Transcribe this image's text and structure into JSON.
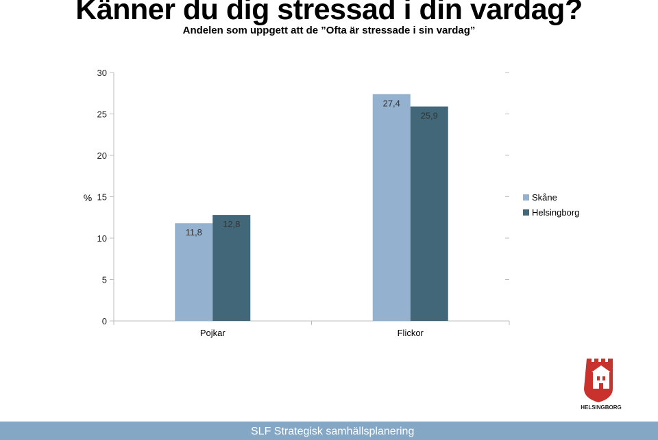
{
  "title": "Känner du dig stressad i din vardag?",
  "subtitle": "Andelen som uppgett att de ”Ofta är stressade i sin vardag”",
  "colors": {
    "skane": "#94b1cf",
    "helsingborg": "#426779",
    "footer": "#85a7c6"
  },
  "chart_data": {
    "type": "bar",
    "categories": [
      "Pojkar",
      "Flickor"
    ],
    "series": [
      {
        "name": "Skåne",
        "values": [
          11.8,
          27.4
        ],
        "labels": [
          "11,8",
          "27,4"
        ]
      },
      {
        "name": "Helsingborg",
        "values": [
          12.8,
          25.9
        ],
        "labels": [
          "12,8",
          "25,9"
        ]
      }
    ],
    "ylabel": "%",
    "ylim": [
      0,
      30
    ],
    "yticks": [
      0,
      5,
      10,
      15,
      20,
      25,
      30
    ],
    "grid": false,
    "legend_position": "right"
  },
  "logo": {
    "text": "HELSINGBORG"
  },
  "footer": {
    "text": "SLF Strategisk samhällsplanering"
  }
}
